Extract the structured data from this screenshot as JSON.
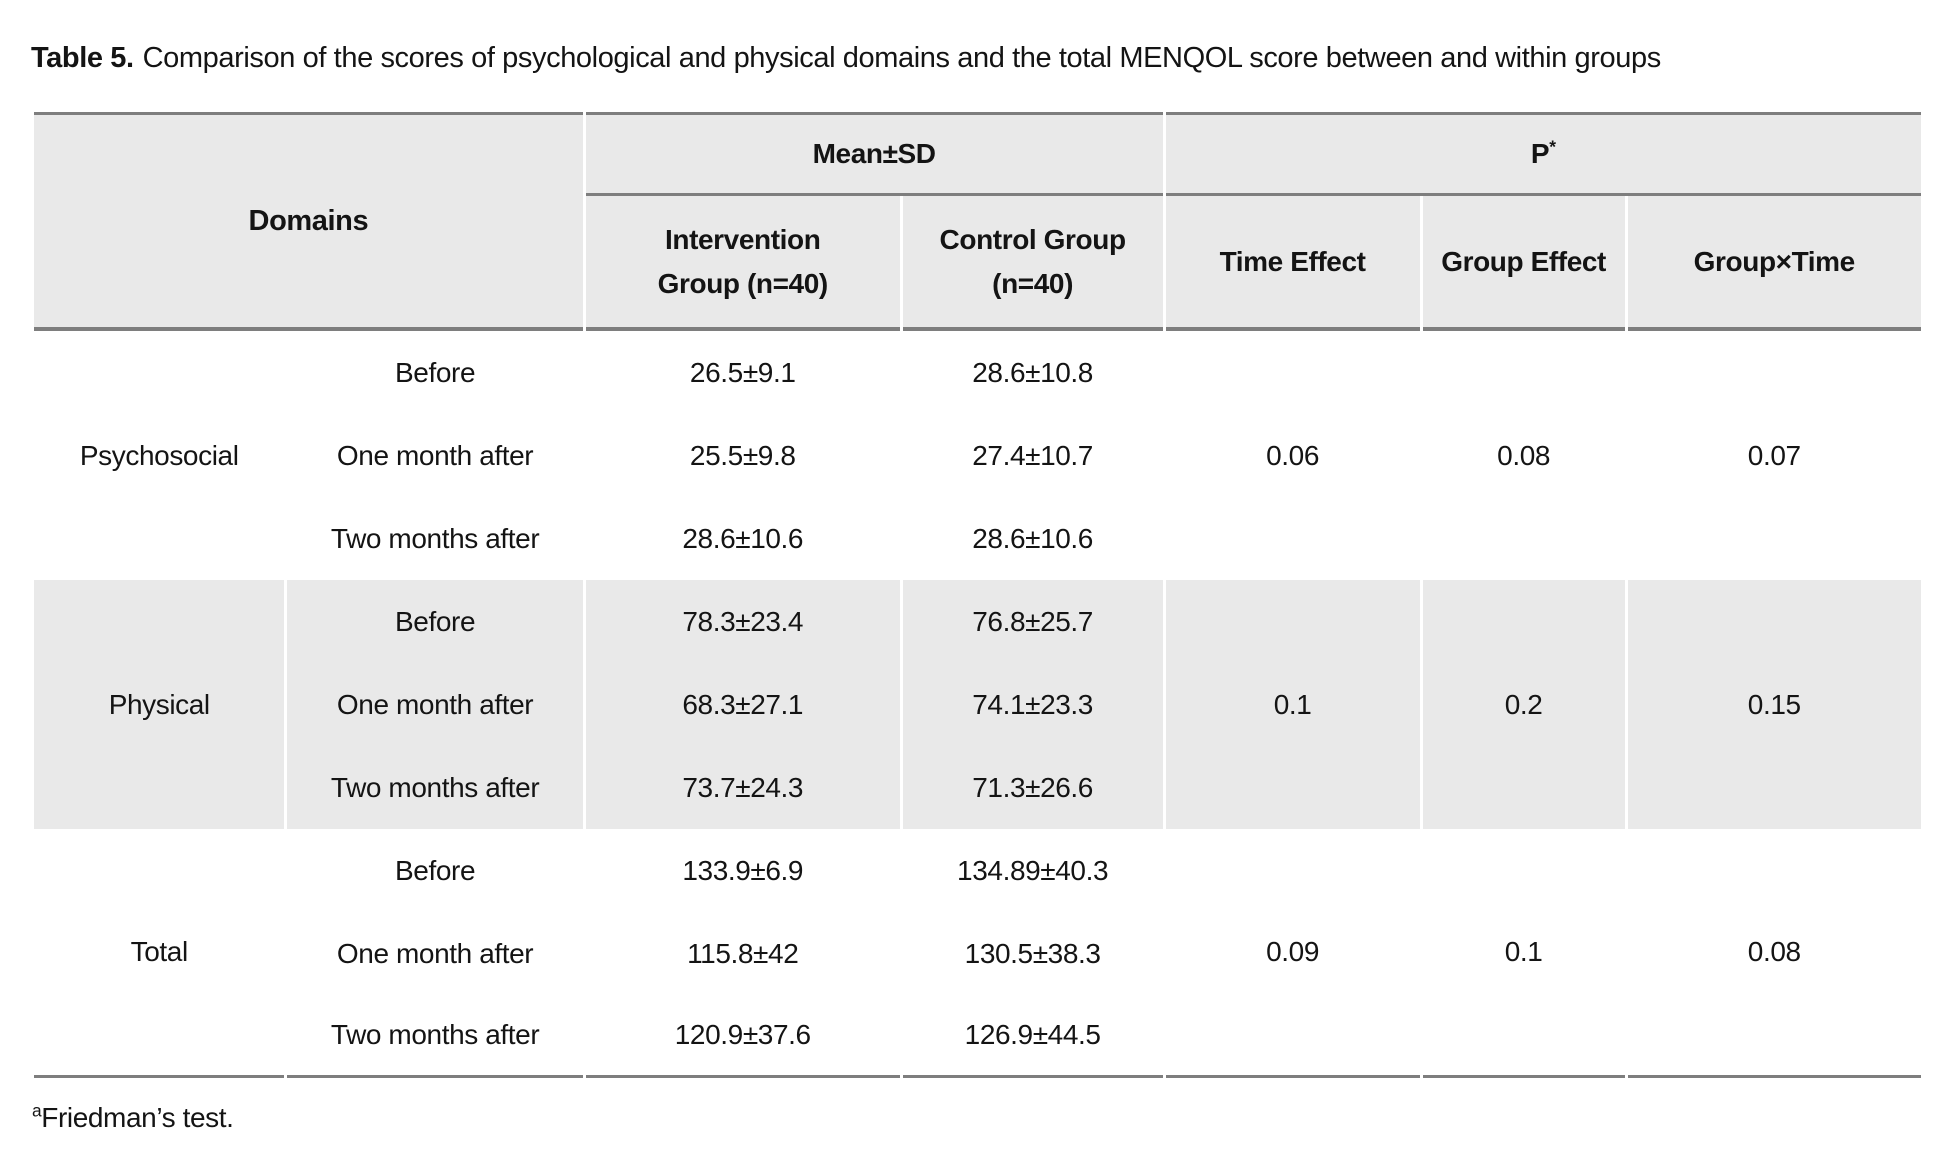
{
  "title": {
    "label": "Table 5.",
    "text": "Comparison of the scores of psychological and physical domains and the total MENQOL score between and within groups"
  },
  "table": {
    "header": {
      "domains": "Domains",
      "mean_sd": "Mean±SD",
      "p": "P",
      "p_superscript": "*",
      "columns": [
        "Intervention Group (n=40)",
        "Control Group (n=40)",
        "Time Effect",
        "Group Effect",
        "Group×Time"
      ]
    },
    "sections": [
      {
        "domain": "Psychosocial",
        "rows": [
          {
            "time": "Before",
            "intervention": "26.5±9.1",
            "control": "28.6±10.8"
          },
          {
            "time": "One month after",
            "intervention": "25.5±9.8",
            "control": "27.4±10.7"
          },
          {
            "time": "Two months after",
            "intervention": "28.6±10.6",
            "control": "28.6±10.6"
          }
        ],
        "p_time": "0.06",
        "p_group": "0.08",
        "p_interaction": "0.07"
      },
      {
        "domain": "Physical",
        "rows": [
          {
            "time": "Before",
            "intervention": "78.3±23.4",
            "control": "76.8±25.7"
          },
          {
            "time": "One month after",
            "intervention": "68.3±27.1",
            "control": "74.1±23.3"
          },
          {
            "time": "Two months after",
            "intervention": "73.7±24.3",
            "control": "71.3±26.6"
          }
        ],
        "p_time": "0.1",
        "p_group": "0.2",
        "p_interaction": "0.15"
      },
      {
        "domain": "Total",
        "rows": [
          {
            "time": "Before",
            "intervention": "133.9±6.9",
            "control": "134.89±40.3"
          },
          {
            "time": "One month after",
            "intervention": "115.8±42",
            "control": "130.5±38.3"
          },
          {
            "time": "Two months after",
            "intervention": "120.9±37.6",
            "control": "126.9±44.5"
          }
        ],
        "p_time": "0.09",
        "p_group": "0.1",
        "p_interaction": "0.08"
      }
    ]
  },
  "footnote": {
    "superscript": "a",
    "text": "Friedman’s test."
  },
  "colors": {
    "header_bg": "#e9e9e9",
    "shaded_row_bg": "#e9e9e9",
    "border": "#7e7e7e",
    "text": "#141414",
    "page_bg": "#ffffff"
  }
}
